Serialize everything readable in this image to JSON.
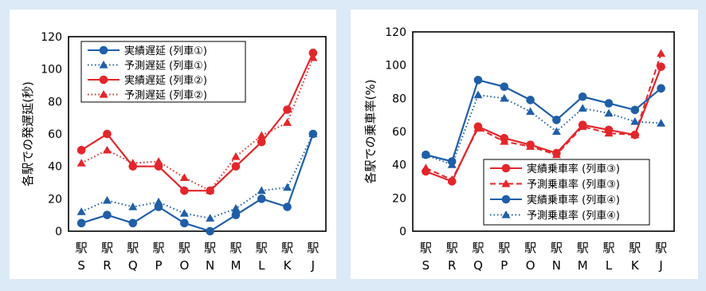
{
  "chart_data": [
    {
      "type": "line",
      "title": "",
      "xlabel": "",
      "ylabel": "各駅での発遅延(秒)",
      "ylim": [
        0,
        120
      ],
      "yticks": [
        0,
        20,
        40,
        60,
        80,
        100,
        120
      ],
      "categories": [
        "駅\nS",
        "駅\nR",
        "駅\nQ",
        "駅\nP",
        "駅\nO",
        "駅\nN",
        "駅\nM",
        "駅\nL",
        "駅\nK",
        "駅\nJ"
      ],
      "grid": false,
      "legend_position": "top-left",
      "series": [
        {
          "name": "実績遅延 (列車①)",
          "values": [
            5,
            10,
            5,
            15,
            5,
            0,
            10,
            20,
            15,
            60
          ],
          "color": "#1f5fa8",
          "dash": "solid",
          "marker": "circle"
        },
        {
          "name": "予測遅延 (列車①)",
          "values": [
            12,
            19,
            15,
            18,
            11,
            8,
            14,
            25,
            27,
            60
          ],
          "color": "#1f5fa8",
          "dash": "dotted",
          "marker": "triangle"
        },
        {
          "name": "実績遅延 (列車②)",
          "values": [
            50,
            60,
            40,
            40,
            25,
            25,
            40,
            55,
            75,
            110
          ],
          "color": "#e3262b",
          "dash": "solid",
          "marker": "circle"
        },
        {
          "name": "予測遅延 (列車②)",
          "values": [
            42,
            50,
            42,
            43,
            33,
            25,
            46,
            59,
            67,
            107
          ],
          "color": "#e3262b",
          "dash": "dotted",
          "marker": "triangle"
        }
      ]
    },
    {
      "type": "line",
      "title": "",
      "xlabel": "",
      "ylabel": "各駅での乗車率(%)",
      "ylim": [
        0,
        120
      ],
      "yticks": [
        0,
        20,
        40,
        60,
        80,
        100,
        120
      ],
      "categories": [
        "駅\nS",
        "駅\nR",
        "駅\nQ",
        "駅\nP",
        "駅\nO",
        "駅\nN",
        "駅\nM",
        "駅\nL",
        "駅\nK",
        "駅\nJ"
      ],
      "grid": false,
      "legend_position": "bottom-right",
      "series": [
        {
          "name": "実績乗車率 (列車③)",
          "values": [
            36,
            30,
            63,
            56,
            52,
            47,
            64,
            61,
            58,
            99
          ],
          "color": "#e3262b",
          "dash": "solid",
          "marker": "circle"
        },
        {
          "name": "予測乗車率 (列車③)",
          "values": [
            38,
            31,
            62,
            54,
            51,
            46,
            63,
            59,
            58,
            107
          ],
          "color": "#e3262b",
          "dash": "dashed",
          "marker": "triangle"
        },
        {
          "name": "実績乗車率 (列車④)",
          "values": [
            46,
            42,
            91,
            87,
            79,
            67,
            81,
            77,
            73,
            86
          ],
          "color": "#1f5fa8",
          "dash": "solid",
          "marker": "circle"
        },
        {
          "name": "予測乗車率 (列車④)",
          "values": [
            46,
            40,
            82,
            80,
            72,
            60,
            74,
            71,
            66,
            65
          ],
          "color": "#1f5fa8",
          "dash": "dotted",
          "marker": "triangle"
        }
      ]
    }
  ]
}
